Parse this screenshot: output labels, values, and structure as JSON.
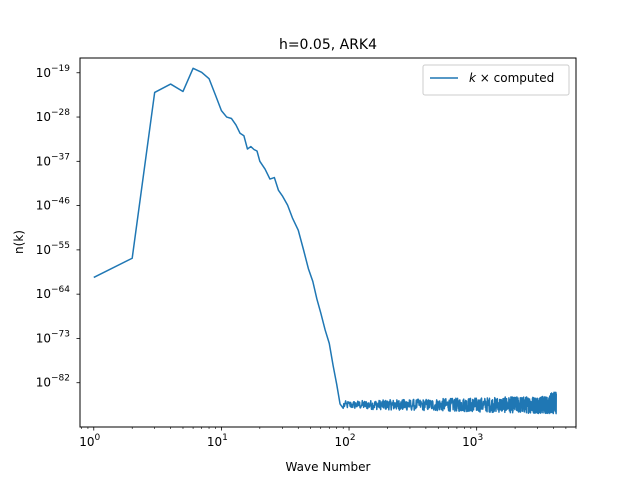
{
  "chart_data": {
    "type": "line",
    "title": "h=0.05, ARK4",
    "xlabel": "Wave Number",
    "ylabel": "n(k)",
    "xscale": "log",
    "yscale": "log",
    "xlim": [
      0.78,
      6000
    ],
    "ylim": [
      1e-91,
      1e-16
    ],
    "grid": false,
    "legend_position": "top-right",
    "x_ticks": [
      {
        "value": 1,
        "mantissa": "10",
        "exp": "0"
      },
      {
        "value": 10,
        "mantissa": "10",
        "exp": "1"
      },
      {
        "value": 100,
        "mantissa": "10",
        "exp": "2"
      },
      {
        "value": 1000,
        "mantissa": "10",
        "exp": "3"
      }
    ],
    "y_ticks": [
      {
        "value": 1e-19,
        "mantissa": "10",
        "exp": "−19"
      },
      {
        "value": 1e-28,
        "mantissa": "10",
        "exp": "−28"
      },
      {
        "value": 1e-37,
        "mantissa": "10",
        "exp": "−37"
      },
      {
        "value": 1e-46,
        "mantissa": "10",
        "exp": "−46"
      },
      {
        "value": 1e-55,
        "mantissa": "10",
        "exp": "−55"
      },
      {
        "value": 1e-64,
        "mantissa": "10",
        "exp": "−64"
      },
      {
        "value": 1e-73,
        "mantissa": "10",
        "exp": "−73"
      },
      {
        "value": 1e-82,
        "mantissa": "10",
        "exp": "−82"
      }
    ],
    "series": [
      {
        "name": "k × computed",
        "legend_label_italic": "k",
        "legend_label_rest": " × computed",
        "color": "#1f77b4",
        "points_log10": [
          [
            1,
            -60.6
          ],
          [
            2,
            -56.7
          ],
          [
            3,
            -23.0
          ],
          [
            4,
            -21.3
          ],
          [
            5,
            -22.8
          ],
          [
            6,
            -18.1
          ],
          [
            7,
            -18.9
          ],
          [
            8,
            -20.2
          ],
          [
            9,
            -23.6
          ],
          [
            10,
            -26.7
          ],
          [
            11,
            -28.0
          ],
          [
            12,
            -28.3
          ],
          [
            13,
            -29.6
          ],
          [
            14,
            -31.3
          ],
          [
            15,
            -31.8
          ],
          [
            16,
            -34.5
          ],
          [
            17,
            -34.0
          ],
          [
            18,
            -34.6
          ],
          [
            19,
            -34.9
          ],
          [
            20,
            -37.0
          ],
          [
            22,
            -38.6
          ],
          [
            24,
            -40.6
          ],
          [
            26,
            -40.3
          ],
          [
            28,
            -42.9
          ],
          [
            30,
            -44.0
          ],
          [
            33,
            -45.9
          ],
          [
            36,
            -48.5
          ],
          [
            40,
            -51.0
          ],
          [
            44,
            -55.0
          ],
          [
            48,
            -58.8
          ],
          [
            52,
            -61.4
          ],
          [
            56,
            -65.0
          ],
          [
            60,
            -67.8
          ],
          [
            65,
            -71.3
          ],
          [
            70,
            -74.0
          ],
          [
            75,
            -78.5
          ],
          [
            80,
            -82.3
          ],
          [
            85,
            -86.3
          ],
          [
            90,
            -87.2
          ]
        ],
        "noise_floor": {
          "x_start": 90,
          "x_end": 4200,
          "log10_mean": -86.5,
          "log10_band": [
            -88.3,
            -84.7
          ]
        }
      }
    ]
  }
}
